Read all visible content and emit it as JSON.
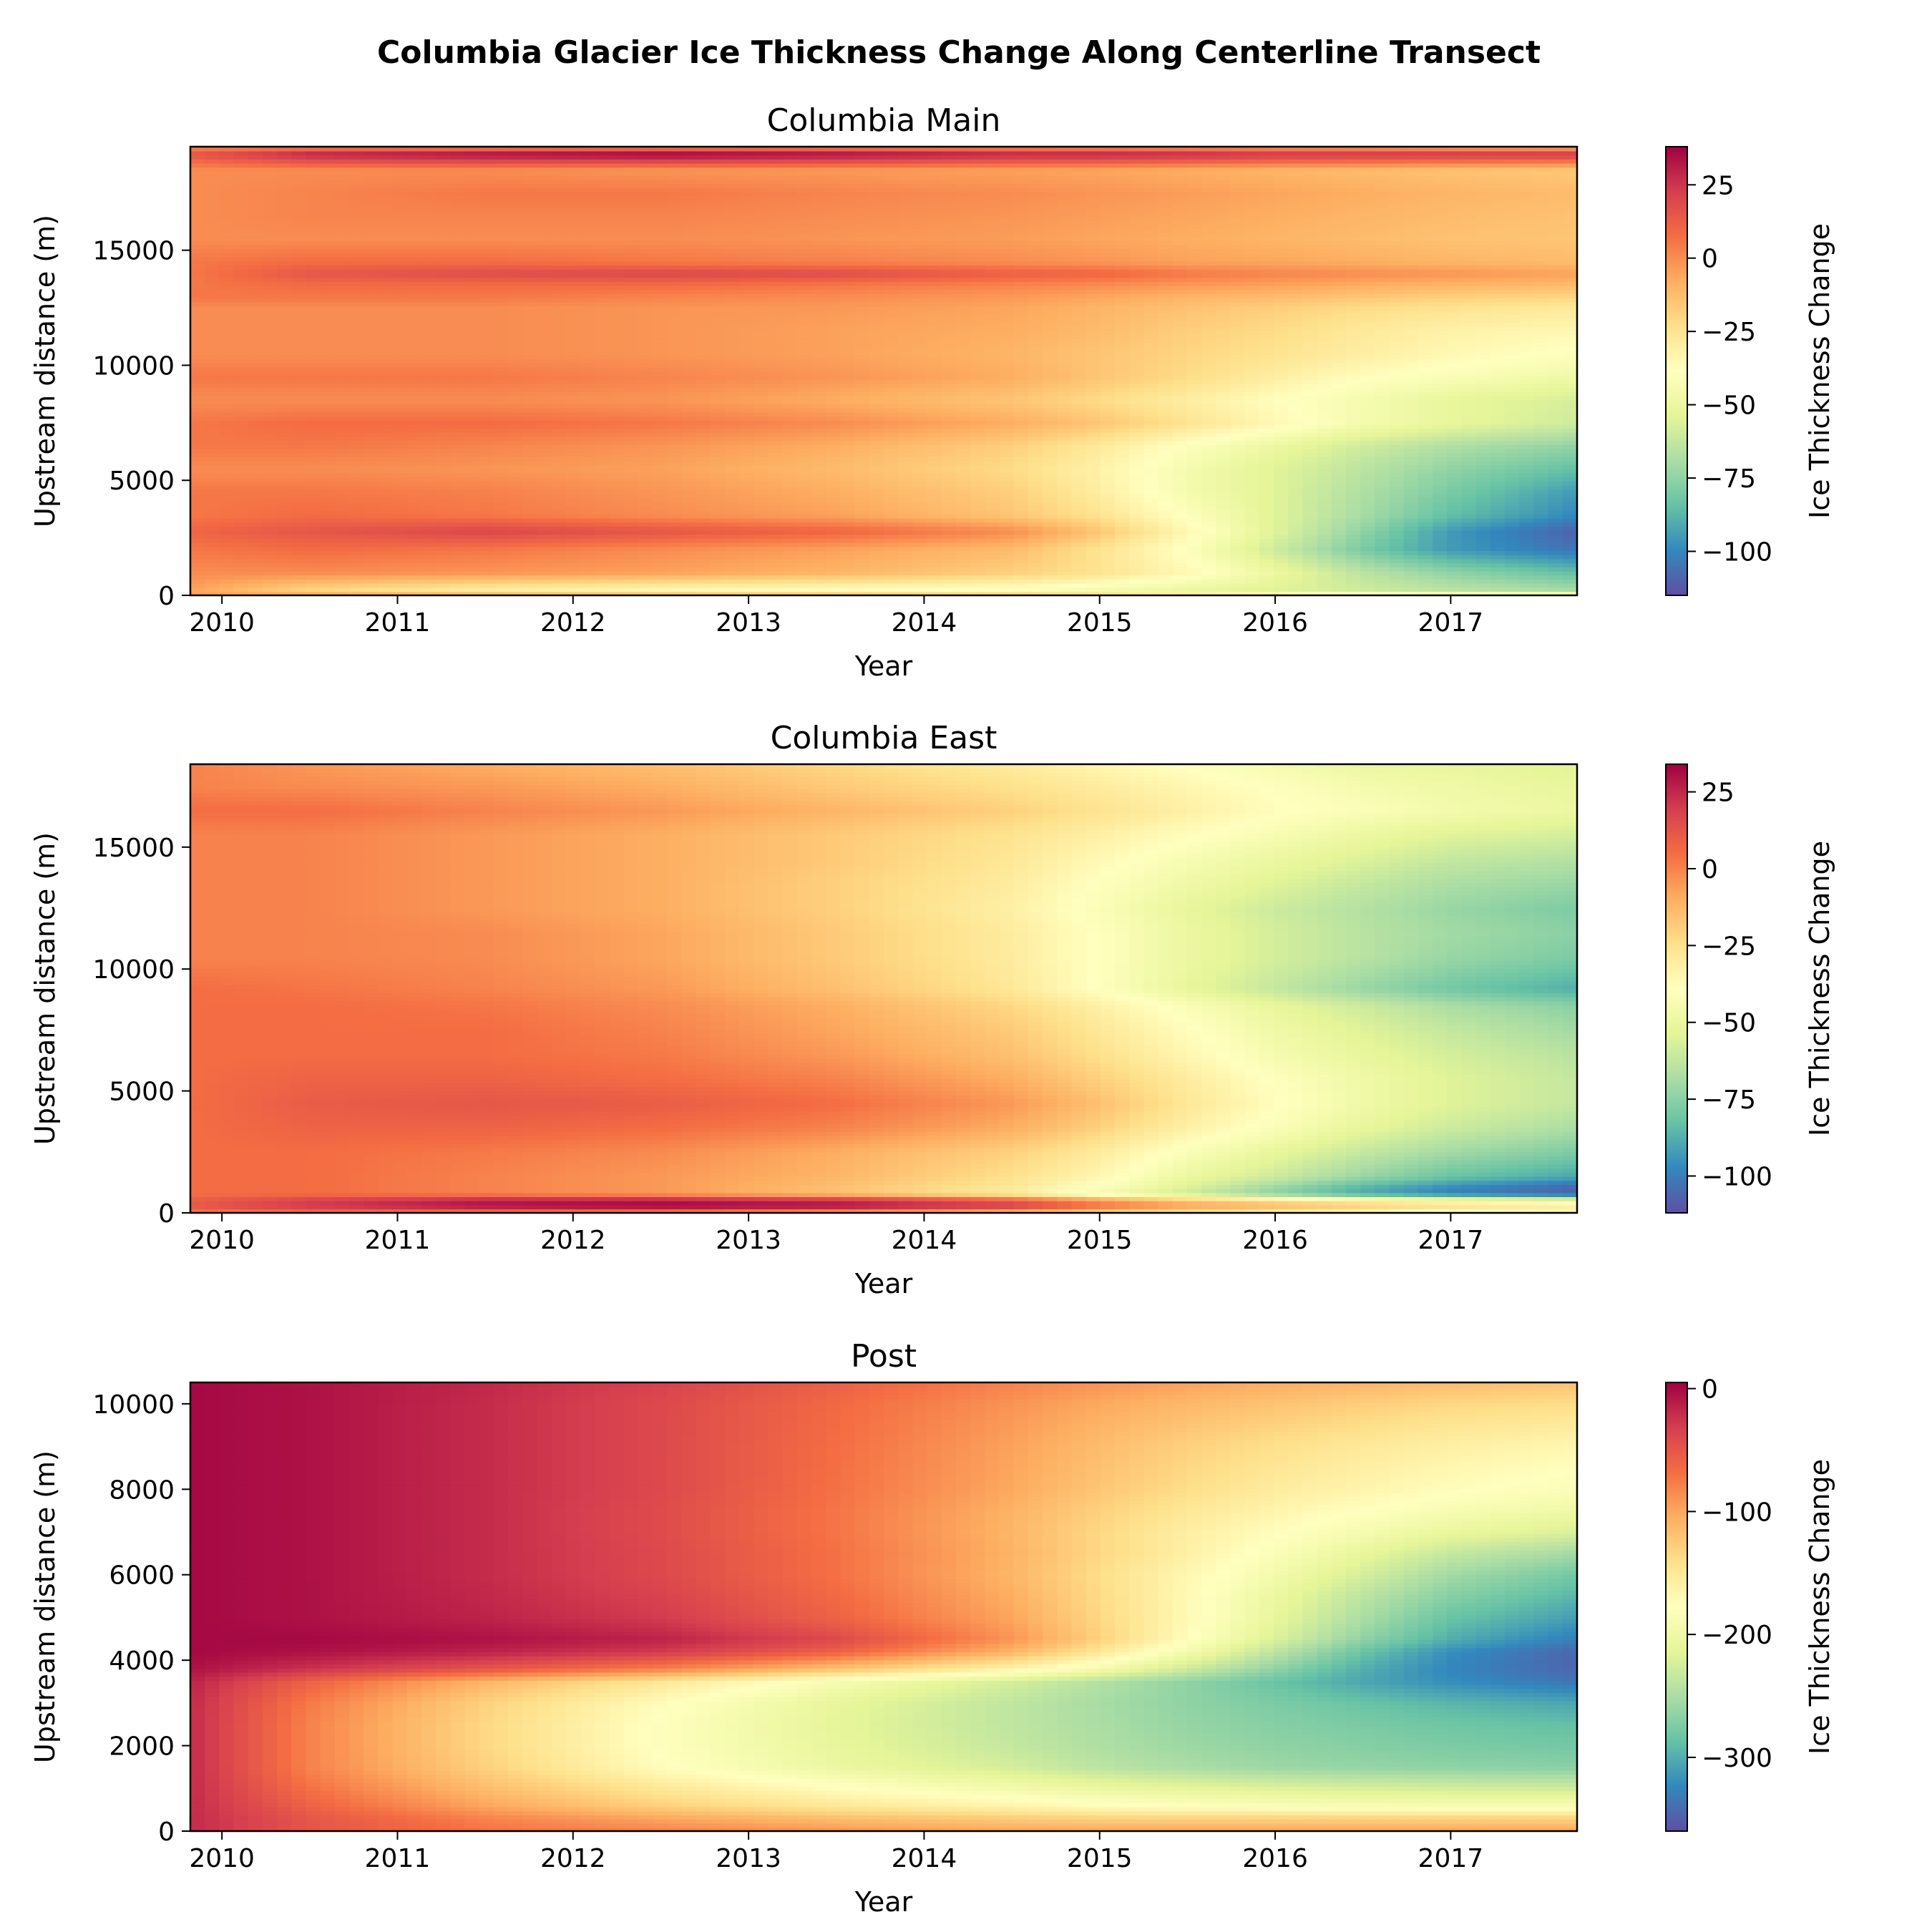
{
  "figure": {
    "title": "Columbia Glacier Ice Thickness Change Along Centerline Transect"
  },
  "chart_data": [
    {
      "type": "heatmap",
      "title": "Columbia Main",
      "xlabel": "Year",
      "ylabel": "Upstream distance (m)",
      "colorbar_label": "Ice Thickness Change",
      "colormap": "Spectral",
      "xlim": [
        2009.82,
        2017.72
      ],
      "ylim": [
        0,
        19500
      ],
      "xticks": [
        "2010",
        "2011",
        "2012",
        "2013",
        "2014",
        "2015",
        "2016",
        "2017"
      ],
      "yticks": [
        "0",
        "5000",
        "10000",
        "15000"
      ],
      "clim": [
        -115,
        38
      ],
      "cticks": [
        "25",
        "0",
        "−25",
        "−50",
        "−75",
        "−100"
      ],
      "grid": false,
      "years": [
        2009.82,
        2010.5,
        2011.5,
        2012.5,
        2013.5,
        2014.5,
        2015.0,
        2015.5,
        2016.0,
        2016.5,
        2017.0,
        2017.72
      ],
      "distances": [
        0,
        250,
        1000,
        2000,
        2800,
        3500,
        4500,
        5500,
        6500,
        7500,
        8500,
        9500,
        10500,
        11500,
        12500,
        13000,
        13500,
        14000,
        14500,
        15500,
        16500,
        17500,
        18500,
        19200,
        19500
      ],
      "values": [
        [
          -5,
          -5,
          -8,
          -10,
          -12,
          -15,
          -18,
          -22,
          -25,
          -28,
          -30,
          -32
        ],
        [
          -5,
          -20,
          -30,
          -35,
          -38,
          -40,
          -45,
          -50,
          -55,
          -60,
          -65,
          -70
        ],
        [
          0,
          0,
          -2,
          -5,
          -10,
          -18,
          -25,
          -35,
          -50,
          -65,
          -75,
          -85
        ],
        [
          5,
          8,
          5,
          0,
          -5,
          -12,
          -25,
          -40,
          -60,
          -80,
          -95,
          -105
        ],
        [
          10,
          15,
          20,
          15,
          10,
          0,
          -15,
          -35,
          -55,
          -75,
          -95,
          -110
        ],
        [
          5,
          8,
          5,
          0,
          -5,
          -15,
          -25,
          -40,
          -55,
          -70,
          -85,
          -100
        ],
        [
          5,
          5,
          3,
          -2,
          -8,
          -18,
          -30,
          -45,
          -55,
          -68,
          -80,
          -95
        ],
        [
          0,
          0,
          -2,
          -5,
          -12,
          -22,
          -32,
          -45,
          -55,
          -65,
          -75,
          -85
        ],
        [
          5,
          5,
          2,
          -2,
          -8,
          -18,
          -28,
          -40,
          -50,
          -60,
          -68,
          -75
        ],
        [
          5,
          8,
          8,
          5,
          0,
          -8,
          -15,
          -25,
          -35,
          -45,
          -52,
          -60
        ],
        [
          0,
          0,
          0,
          -2,
          -8,
          -15,
          -22,
          -30,
          -38,
          -45,
          -52,
          -58
        ],
        [
          5,
          5,
          5,
          2,
          -2,
          -8,
          -15,
          -22,
          -30,
          -38,
          -42,
          -48
        ],
        [
          0,
          0,
          0,
          -2,
          -5,
          -10,
          -15,
          -20,
          -25,
          -30,
          -35,
          -40
        ],
        [
          0,
          0,
          0,
          -2,
          -5,
          -8,
          -12,
          -18,
          -22,
          -28,
          -32,
          -35
        ],
        [
          0,
          0,
          0,
          -2,
          -3,
          -6,
          -10,
          -14,
          -18,
          -22,
          -25,
          -28
        ],
        [
          5,
          5,
          5,
          2,
          0,
          -3,
          -6,
          -10,
          -12,
          -15,
          -18,
          -20
        ],
        [
          5,
          8,
          8,
          8,
          5,
          2,
          0,
          -3,
          -5,
          -8,
          -10,
          -12
        ],
        [
          5,
          15,
          18,
          20,
          18,
          12,
          10,
          5,
          2,
          0,
          -2,
          -5
        ],
        [
          5,
          8,
          8,
          5,
          3,
          0,
          -2,
          -5,
          -6,
          -8,
          -10,
          -12
        ],
        [
          0,
          0,
          0,
          0,
          -2,
          -4,
          -6,
          -8,
          -10,
          -12,
          -14,
          -15
        ],
        [
          0,
          2,
          2,
          2,
          0,
          -2,
          -4,
          -6,
          -8,
          -10,
          -12,
          -14
        ],
        [
          0,
          2,
          5,
          5,
          2,
          0,
          -2,
          -4,
          -6,
          -8,
          -10,
          -12
        ],
        [
          0,
          0,
          0,
          -2,
          -3,
          -5,
          -6,
          -8,
          -10,
          -12,
          -14,
          -16
        ],
        [
          15,
          30,
          35,
          38,
          35,
          30,
          30,
          28,
          25,
          25,
          25,
          25
        ],
        [
          0,
          0,
          0,
          0,
          0,
          -2,
          -3,
          -4,
          -5,
          -6,
          -8,
          -10
        ]
      ]
    },
    {
      "type": "heatmap",
      "title": "Columbia East",
      "xlabel": "Year",
      "ylabel": "Upstream distance (m)",
      "colorbar_label": "Ice Thickness Change",
      "colormap": "Spectral",
      "xlim": [
        2009.82,
        2017.72
      ],
      "ylim": [
        0,
        18400
      ],
      "xticks": [
        "2010",
        "2011",
        "2012",
        "2013",
        "2014",
        "2015",
        "2016",
        "2017"
      ],
      "yticks": [
        "0",
        "5000",
        "10000",
        "15000"
      ],
      "clim": [
        -112,
        34
      ],
      "cticks": [
        "25",
        "0",
        "−25",
        "−50",
        "−75",
        "−100"
      ],
      "grid": false,
      "years": [
        2009.82,
        2010.5,
        2011.5,
        2012.5,
        2013.5,
        2014.5,
        2015.0,
        2015.5,
        2016.0,
        2016.5,
        2017.0,
        2017.72
      ],
      "distances": [
        0,
        200,
        500,
        800,
        1100,
        1500,
        2500,
        3500,
        4500,
        5500,
        6500,
        7500,
        8500,
        9200,
        10500,
        11500,
        12500,
        13500,
        14500,
        15500,
        16500,
        17500,
        18400
      ],
      "values": [
        [
          0,
          0,
          -5,
          -10,
          -18,
          -25,
          -30,
          -35,
          -40,
          -45,
          -50,
          -55
        ],
        [
          10,
          18,
          25,
          28,
          25,
          15,
          0,
          -10,
          -15,
          -20,
          -25,
          -30
        ],
        [
          10,
          20,
          30,
          32,
          28,
          15,
          0,
          -12,
          -20,
          -28,
          -35,
          -40
        ],
        [
          5,
          5,
          0,
          -5,
          -15,
          -30,
          -45,
          -60,
          -75,
          -90,
          -100,
          -108
        ],
        [
          5,
          5,
          0,
          -5,
          -15,
          -28,
          -40,
          -55,
          -70,
          -85,
          -95,
          -105
        ],
        [
          5,
          5,
          0,
          -5,
          -12,
          -25,
          -35,
          -50,
          -60,
          -72,
          -82,
          -90
        ],
        [
          5,
          5,
          2,
          -2,
          -10,
          -20,
          -30,
          -42,
          -52,
          -62,
          -70,
          -78
        ],
        [
          5,
          8,
          8,
          5,
          0,
          -10,
          -20,
          -32,
          -42,
          -52,
          -60,
          -68
        ],
        [
          5,
          10,
          12,
          10,
          5,
          -5,
          -15,
          -28,
          -38,
          -48,
          -55,
          -62
        ],
        [
          5,
          8,
          8,
          5,
          0,
          -10,
          -20,
          -30,
          -40,
          -48,
          -55,
          -62
        ],
        [
          5,
          5,
          5,
          2,
          -5,
          -15,
          -25,
          -35,
          -45,
          -52,
          -58,
          -65
        ],
        [
          5,
          5,
          5,
          0,
          -8,
          -18,
          -28,
          -38,
          -48,
          -55,
          -62,
          -70
        ],
        [
          5,
          5,
          3,
          -2,
          -10,
          -22,
          -32,
          -42,
          -52,
          -60,
          -68,
          -75
        ],
        [
          5,
          3,
          0,
          -5,
          -15,
          -28,
          -40,
          -52,
          -62,
          -72,
          -80,
          -88
        ],
        [
          0,
          0,
          -2,
          -8,
          -18,
          -30,
          -40,
          -50,
          -58,
          -65,
          -72,
          -78
        ],
        [
          0,
          0,
          -2,
          -8,
          -18,
          -30,
          -40,
          -50,
          -58,
          -65,
          -70,
          -75
        ],
        [
          0,
          0,
          -5,
          -10,
          -20,
          -32,
          -42,
          -52,
          -60,
          -66,
          -72,
          -78
        ],
        [
          0,
          0,
          -5,
          -10,
          -20,
          -30,
          -40,
          -48,
          -55,
          -62,
          -68,
          -72
        ],
        [
          0,
          0,
          -5,
          -10,
          -18,
          -28,
          -36,
          -44,
          -50,
          -56,
          -62,
          -66
        ],
        [
          0,
          0,
          -5,
          -10,
          -18,
          -26,
          -32,
          -38,
          -44,
          -50,
          -55,
          -58
        ],
        [
          5,
          5,
          0,
          -5,
          -12,
          -20,
          -26,
          -32,
          -38,
          -42,
          -46,
          -50
        ],
        [
          0,
          -2,
          -5,
          -10,
          -18,
          -25,
          -30,
          -35,
          -40,
          -45,
          -48,
          -52
        ],
        [
          0,
          -5,
          -10,
          -15,
          -22,
          -30,
          -35,
          -40,
          -45,
          -50,
          -52,
          -55
        ]
      ]
    },
    {
      "type": "heatmap",
      "title": "Post",
      "xlabel": "Year",
      "ylabel": "Upstream distance (m)",
      "colorbar_label": "Ice Thickness Change",
      "colormap": "Spectral",
      "xlim": [
        2009.82,
        2017.72
      ],
      "ylim": [
        0,
        10500
      ],
      "xticks": [
        "2010",
        "2011",
        "2012",
        "2013",
        "2014",
        "2015",
        "2016",
        "2017"
      ],
      "yticks": [
        "0",
        "2000",
        "4000",
        "6000",
        "8000",
        "10000"
      ],
      "clim": [
        -360,
        5
      ],
      "cticks": [
        "0",
        "−100",
        "−200",
        "−300"
      ],
      "grid": false,
      "years": [
        2009.82,
        2010.5,
        2011.5,
        2012.5,
        2013.5,
        2014.5,
        2015.0,
        2015.5,
        2016.0,
        2016.5,
        2017.0,
        2017.72
      ],
      "distances": [
        0,
        300,
        600,
        1000,
        1500,
        2000,
        2500,
        3000,
        3500,
        3800,
        4200,
        4500,
        5000,
        5500,
        6000,
        6500,
        7000,
        7500,
        8000,
        9000,
        10000,
        10500
      ],
      "values": [
        [
          -20,
          -50,
          -70,
          -80,
          -90,
          -100,
          -100,
          -100,
          -100,
          -100,
          -100,
          -100
        ],
        [
          -20,
          -50,
          -80,
          -100,
          -115,
          -125,
          -130,
          -130,
          -130,
          -130,
          -130,
          -130
        ],
        [
          -20,
          -60,
          -100,
          -130,
          -150,
          -165,
          -175,
          -180,
          -185,
          -188,
          -190,
          -190
        ],
        [
          -20,
          -70,
          -115,
          -150,
          -175,
          -195,
          -205,
          -212,
          -218,
          -222,
          -225,
          -228
        ],
        [
          -20,
          -80,
          -130,
          -175,
          -205,
          -225,
          -240,
          -250,
          -258,
          -262,
          -265,
          -268
        ],
        [
          -20,
          -80,
          -135,
          -180,
          -210,
          -235,
          -248,
          -258,
          -265,
          -270,
          -275,
          -280
        ],
        [
          -20,
          -80,
          -135,
          -180,
          -212,
          -238,
          -250,
          -262,
          -270,
          -276,
          -282,
          -288
        ],
        [
          -20,
          -75,
          -130,
          -175,
          -210,
          -238,
          -252,
          -265,
          -275,
          -285,
          -295,
          -305
        ],
        [
          -15,
          -60,
          -110,
          -150,
          -190,
          -225,
          -245,
          -265,
          -285,
          -305,
          -320,
          -335
        ],
        [
          -5,
          -25,
          -50,
          -80,
          -120,
          -165,
          -195,
          -230,
          -265,
          -300,
          -325,
          -345
        ],
        [
          0,
          -5,
          -15,
          -30,
          -60,
          -110,
          -150,
          -195,
          -240,
          -285,
          -320,
          -345
        ],
        [
          0,
          0,
          -5,
          -15,
          -40,
          -90,
          -130,
          -175,
          -220,
          -265,
          -300,
          -330
        ],
        [
          0,
          -5,
          -15,
          -30,
          -60,
          -100,
          -135,
          -170,
          -210,
          -250,
          -285,
          -310
        ],
        [
          0,
          -5,
          -18,
          -35,
          -65,
          -105,
          -138,
          -170,
          -205,
          -240,
          -270,
          -295
        ],
        [
          0,
          -5,
          -20,
          -40,
          -70,
          -110,
          -140,
          -168,
          -195,
          -225,
          -255,
          -280
        ],
        [
          0,
          -5,
          -20,
          -40,
          -70,
          -108,
          -135,
          -160,
          -185,
          -210,
          -235,
          -255
        ],
        [
          0,
          -5,
          -20,
          -42,
          -72,
          -110,
          -135,
          -158,
          -175,
          -192,
          -208,
          -222
        ],
        [
          0,
          -5,
          -20,
          -42,
          -72,
          -108,
          -130,
          -150,
          -165,
          -178,
          -190,
          -200
        ],
        [
          0,
          -5,
          -20,
          -40,
          -70,
          -102,
          -122,
          -140,
          -155,
          -165,
          -175,
          -185
        ],
        [
          0,
          -5,
          -20,
          -40,
          -68,
          -98,
          -115,
          -130,
          -142,
          -152,
          -160,
          -168
        ],
        [
          0,
          -5,
          -20,
          -40,
          -65,
          -90,
          -102,
          -112,
          -120,
          -128,
          -135,
          -140
        ],
        [
          0,
          -5,
          -18,
          -35,
          -58,
          -80,
          -90,
          -98,
          -105,
          -110,
          -115,
          -120
        ]
      ]
    }
  ]
}
